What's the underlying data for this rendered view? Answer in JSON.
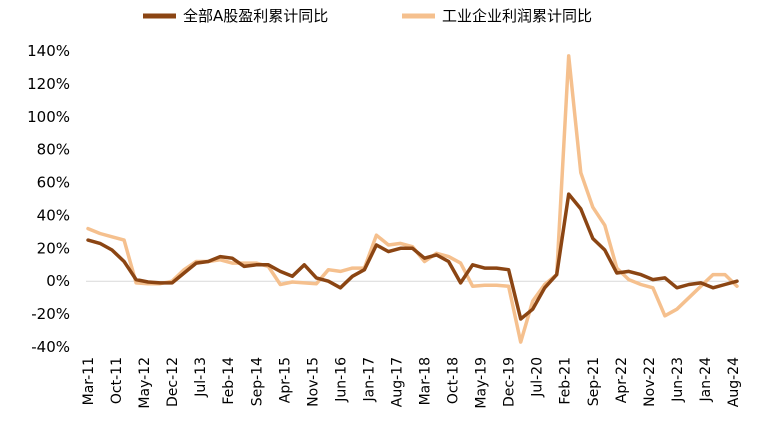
{
  "chart_data": {
    "type": "line",
    "y_tick_labels": [
      "140%",
      "120%",
      "100%",
      "80%",
      "60%",
      "40%",
      "20%",
      "0%",
      "-20%",
      "-40%"
    ],
    "y_ticks": [
      140,
      120,
      100,
      80,
      60,
      40,
      20,
      0,
      -20,
      -40
    ],
    "ylim": [
      -40,
      140
    ],
    "x_tick_labels": [
      "Mar-11",
      "Oct-11",
      "May-12",
      "Dec-12",
      "Jul-13",
      "Feb-14",
      "Sep-14",
      "Apr-15",
      "Nov-15",
      "Jun-16",
      "Jan-17",
      "Aug-17",
      "Mar-18",
      "Oct-18",
      "May-19",
      "Dec-19",
      "Jul-20",
      "Feb-21",
      "Sep-21",
      "Apr-22",
      "Nov-22",
      "Jun-23",
      "Jan-24",
      "Aug-24"
    ],
    "x": [
      "2011-03",
      "2011-06",
      "2011-09",
      "2011-12",
      "2012-03",
      "2012-06",
      "2012-09",
      "2012-12",
      "2013-03",
      "2013-06",
      "2013-09",
      "2013-12",
      "2014-03",
      "2014-06",
      "2014-09",
      "2014-12",
      "2015-03",
      "2015-06",
      "2015-09",
      "2015-12",
      "2016-03",
      "2016-06",
      "2016-09",
      "2016-12",
      "2017-03",
      "2017-06",
      "2017-09",
      "2017-12",
      "2018-03",
      "2018-06",
      "2018-09",
      "2018-12",
      "2019-03",
      "2019-06",
      "2019-09",
      "2019-12",
      "2020-03",
      "2020-06",
      "2020-09",
      "2020-12",
      "2021-03",
      "2021-06",
      "2021-09",
      "2021-12",
      "2022-03",
      "2022-06",
      "2022-09",
      "2022-12",
      "2023-03",
      "2023-06",
      "2023-09",
      "2023-12",
      "2024-03",
      "2024-06",
      "2024-09"
    ],
    "series": [
      {
        "name": "全部A股盈利累计同比",
        "color": "#8B4513",
        "values": [
          25,
          23,
          19,
          12,
          1,
          -0.5,
          -1,
          -1,
          5,
          11,
          12,
          15,
          14,
          9,
          10,
          10,
          6,
          3,
          10,
          2,
          0,
          -4,
          3,
          7,
          22,
          18,
          20,
          20,
          14,
          16,
          12,
          -1,
          10,
          8,
          8,
          7,
          -23,
          -17,
          -4,
          4,
          53,
          44,
          26,
          19,
          5,
          6,
          4,
          1,
          2,
          -4,
          -2,
          -1,
          -4,
          -2,
          0
        ]
      },
      {
        "name": "工业企业利润累计同比",
        "color": "#F5C08E",
        "values": [
          32,
          29,
          27,
          25,
          -1,
          -1.5,
          -1.5,
          0,
          7,
          12,
          12,
          13,
          11,
          11,
          11,
          9,
          -2,
          -0.5,
          -1,
          -1.5,
          7,
          6,
          8,
          8,
          28,
          22,
          23,
          21,
          12,
          17,
          15,
          11,
          -3,
          -2.5,
          -2.5,
          -3,
          -37,
          -12,
          -2,
          4,
          137,
          66,
          45,
          34,
          8,
          1,
          -2,
          -4,
          -21,
          -17,
          -10,
          -3,
          4,
          4,
          -3
        ]
      }
    ],
    "legend_position": "top",
    "grid": false
  }
}
